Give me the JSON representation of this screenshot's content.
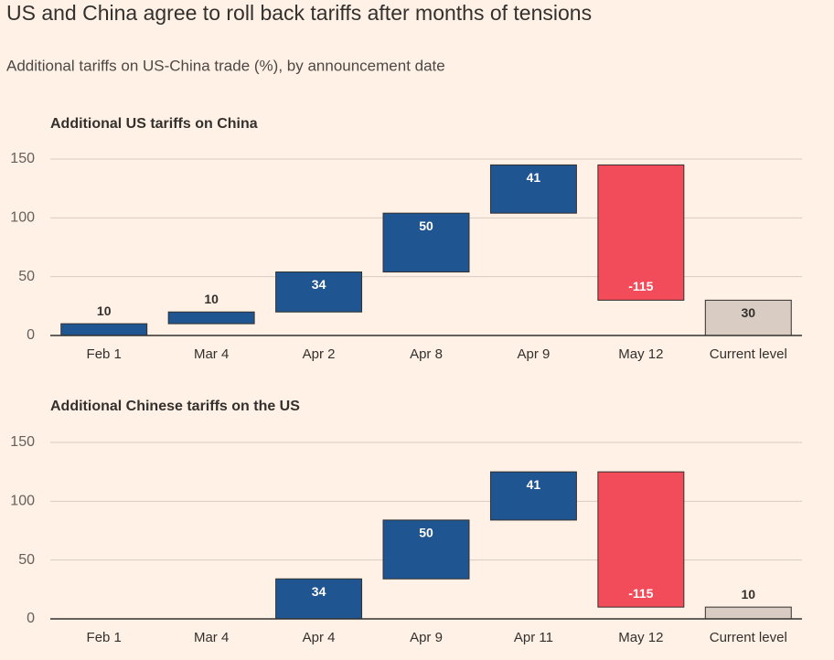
{
  "header": {
    "title": "US and China agree to roll back tariffs after months of tensions",
    "subtitle": "Additional tariffs on US-China trade (%), by announcement date"
  },
  "chart_data": [
    {
      "type": "waterfall",
      "title": "Additional US tariffs on China",
      "categories": [
        "Feb 1",
        "Mar 4",
        "Apr 2",
        "Apr 8",
        "Apr 9",
        "May 12",
        "Current level"
      ],
      "values": [
        10,
        10,
        34,
        50,
        41,
        -115,
        30
      ],
      "totals": [
        "Current level"
      ],
      "colors": {
        "increase": "#1f5591",
        "decrease": "#f24b5a",
        "total": "#d9ccc3"
      },
      "ylim": [
        0,
        150
      ],
      "yticks": [
        0,
        50,
        100,
        150
      ],
      "grid": true
    },
    {
      "type": "waterfall",
      "title": "Additional Chinese tariffs on the US",
      "categories": [
        "Feb 1",
        "Mar 4",
        "Apr 4",
        "Apr 9",
        "Apr 11",
        "May 12",
        "Current level"
      ],
      "values": [
        null,
        null,
        34,
        50,
        41,
        -115,
        10
      ],
      "totals": [
        "Current level"
      ],
      "colors": {
        "increase": "#1f5591",
        "decrease": "#f24b5a",
        "total": "#d9ccc3"
      },
      "ylim": [
        0,
        150
      ],
      "yticks": [
        0,
        50,
        100,
        150
      ],
      "grid": true
    }
  ]
}
